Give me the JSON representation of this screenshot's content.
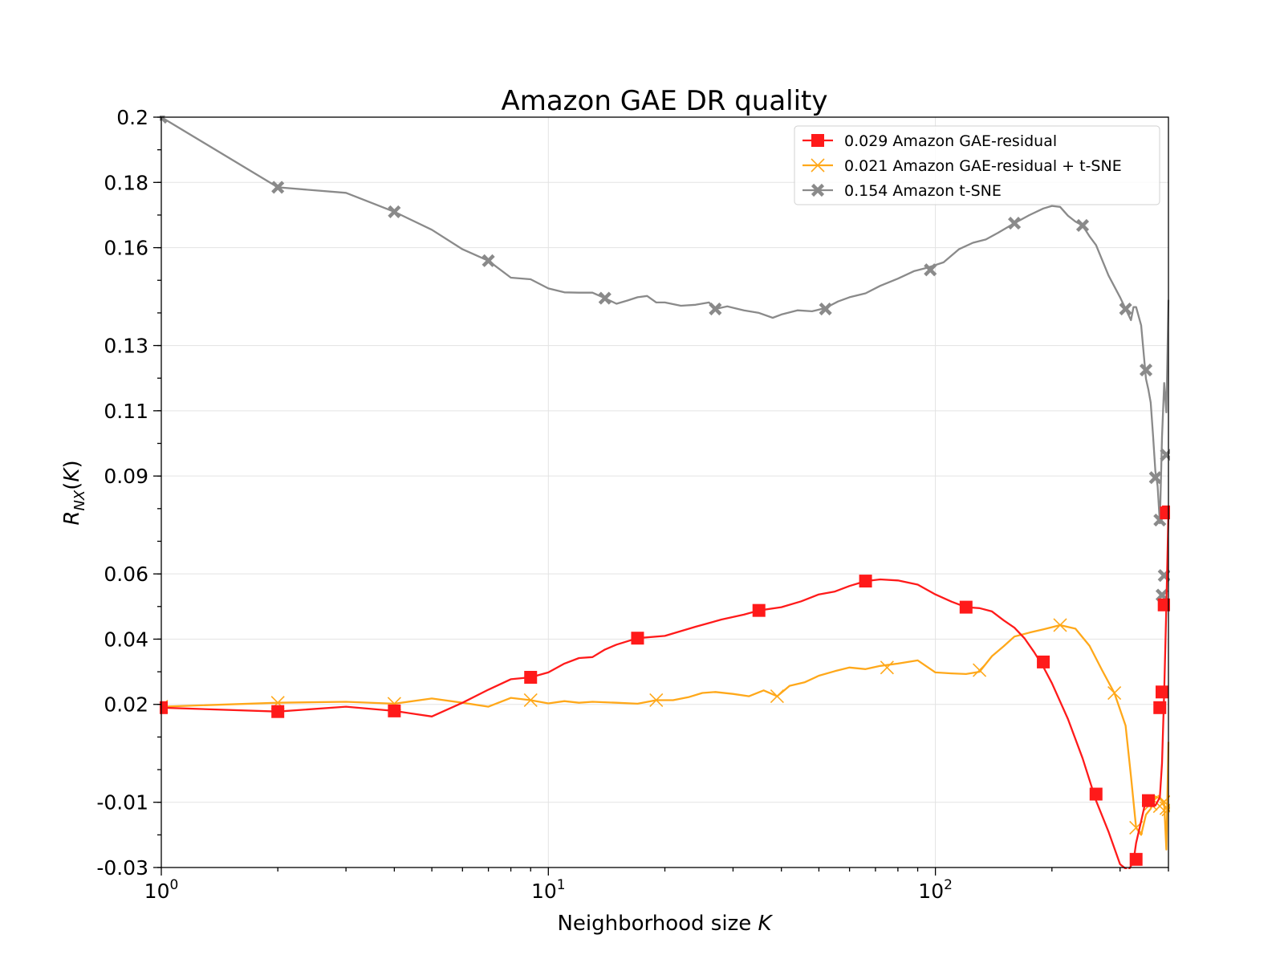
{
  "chart_data": {
    "type": "line",
    "title": "Amazon GAE DR quality",
    "xlabel": "Neighborhood size K",
    "ylabel": "R_NX(K)",
    "xscale": "log",
    "xlim": [
      1,
      400
    ],
    "ylim": [
      -0.03,
      0.2
    ],
    "grid": true,
    "legend_position": "top-right",
    "x_ticks": [
      {
        "value": 1,
        "base": "10",
        "exp": "0"
      },
      {
        "value": 10,
        "base": "10",
        "exp": "1"
      },
      {
        "value": 100,
        "base": "10",
        "exp": "2"
      }
    ],
    "y_ticks": [
      {
        "value": -0.03,
        "label": "-0.03"
      },
      {
        "value": -0.01,
        "label": "-0.01"
      },
      {
        "value": 0.02,
        "label": "0.02"
      },
      {
        "value": 0.04,
        "label": "0.04"
      },
      {
        "value": 0.06,
        "label": "0.06"
      },
      {
        "value": 0.09,
        "label": "0.09"
      },
      {
        "value": 0.11,
        "label": "0.11"
      },
      {
        "value": 0.13,
        "label": "0.13"
      },
      {
        "value": 0.16,
        "label": "0.16"
      },
      {
        "value": 0.18,
        "label": "0.18"
      },
      {
        "value": 0.2,
        "label": "0.2"
      }
    ],
    "series": [
      {
        "name": "0.029 Amazon GAE-residual",
        "color": "#ff1a1a",
        "marker": "square",
        "x": [
          1,
          2,
          3,
          4,
          5,
          6,
          7,
          8,
          9,
          10,
          11,
          12,
          13,
          14,
          15,
          17,
          20,
          24,
          28,
          32,
          35,
          40,
          45,
          50,
          55,
          60,
          66,
          72,
          80,
          90,
          100,
          110,
          120,
          130,
          140,
          150,
          160,
          170,
          180,
          190,
          200,
          220,
          240,
          260,
          280,
          300,
          315,
          325,
          330,
          340,
          350,
          360,
          370,
          380,
          385,
          390,
          395,
          400
        ],
        "y": [
          0.019,
          0.0178,
          0.0193,
          0.018,
          0.0163,
          0.0205,
          0.0245,
          0.0277,
          0.0283,
          0.0298,
          0.0325,
          0.0342,
          0.0345,
          0.0368,
          0.0383,
          0.0403,
          0.041,
          0.0438,
          0.046,
          0.0475,
          0.0488,
          0.0498,
          0.0516,
          0.0537,
          0.0546,
          0.0563,
          0.0578,
          0.0583,
          0.058,
          0.0567,
          0.0537,
          0.0515,
          0.0498,
          0.0495,
          0.0485,
          0.0458,
          0.0435,
          0.0402,
          0.036,
          0.0315,
          0.0265,
          0.0155,
          0.0035,
          -0.0095,
          -0.019,
          -0.029,
          -0.031,
          -0.028,
          -0.0225,
          -0.0158,
          -0.0092,
          -0.0095,
          -0.011,
          -0.0085,
          0.002,
          0.0238,
          0.05,
          0.079
        ],
        "markers_x": [
          1,
          2,
          4,
          9,
          17,
          35,
          66,
          120,
          190,
          260,
          330,
          355,
          380,
          385,
          390,
          395,
          400
        ],
        "markers_y": [
          0.019,
          0.0178,
          0.018,
          0.0283,
          0.0403,
          0.0488,
          0.0578,
          0.0498,
          0.033,
          -0.0075,
          -0.0275,
          -0.0095,
          0.019,
          0.0238,
          0.0505,
          0.0787,
          0.079
        ]
      },
      {
        "name": "0.021 Amazon GAE-residual + t-SNE",
        "color": "#ffa81a",
        "marker": "x",
        "x": [
          1,
          2,
          3,
          4,
          5,
          6,
          7,
          8,
          9,
          10,
          11,
          12,
          13,
          15,
          17,
          19,
          21,
          23,
          25,
          27,
          30,
          33,
          36,
          39,
          42,
          46,
          50,
          55,
          60,
          66,
          72,
          80,
          90,
          100,
          110,
          120,
          130,
          140,
          150,
          160,
          175,
          190,
          210,
          230,
          250,
          270,
          290,
          310,
          320,
          330,
          340,
          350,
          360,
          370,
          380,
          390,
          395,
          400
        ],
        "y": [
          0.0193,
          0.0205,
          0.0208,
          0.0202,
          0.0218,
          0.0205,
          0.0193,
          0.022,
          0.0213,
          0.0203,
          0.021,
          0.0205,
          0.0208,
          0.0205,
          0.0202,
          0.0213,
          0.0213,
          0.0222,
          0.0235,
          0.0238,
          0.0232,
          0.0225,
          0.0243,
          0.0225,
          0.0257,
          0.0268,
          0.0288,
          0.0302,
          0.0313,
          0.0308,
          0.0318,
          0.0325,
          0.0335,
          0.0298,
          0.0295,
          0.0293,
          0.03,
          0.0348,
          0.0378,
          0.0408,
          0.042,
          0.043,
          0.0443,
          0.0432,
          0.038,
          0.0303,
          0.0235,
          0.0135,
          -0.002,
          -0.0178,
          -0.02,
          -0.0138,
          -0.012,
          -0.0082,
          -0.0088,
          -0.0105,
          -0.0245,
          0.0085
        ],
        "markers_x": [
          1,
          2,
          4,
          9,
          19,
          39,
          75,
          130,
          210,
          290,
          330,
          360,
          380,
          390,
          395,
          400
        ],
        "markers_y": [
          0.0193,
          0.0205,
          0.0202,
          0.0213,
          0.0213,
          0.0225,
          0.0313,
          0.0305,
          0.0443,
          0.0235,
          -0.0178,
          -0.0105,
          -0.0112,
          -0.0098,
          -0.0118,
          -0.0122
        ]
      },
      {
        "name": "0.154 Amazon t-SNE",
        "color": "#8a8a8a",
        "marker": "X",
        "x": [
          1,
          2,
          3,
          4,
          5,
          6,
          7,
          8,
          9,
          10,
          11,
          12,
          13,
          14,
          15,
          16,
          17,
          18,
          19,
          20,
          22,
          24,
          26,
          27,
          29,
          32,
          35,
          38,
          40,
          44,
          48,
          52,
          56,
          60,
          66,
          72,
          80,
          88,
          95,
          105,
          115,
          125,
          135,
          145,
          160,
          175,
          190,
          200,
          210,
          220,
          230,
          240,
          250,
          260,
          280,
          300,
          320,
          325,
          330,
          340,
          345,
          350,
          355,
          360,
          365,
          370,
          375,
          380,
          385,
          390,
          395,
          400
        ],
        "y": [
          0.2,
          0.1785,
          0.1768,
          0.171,
          0.1655,
          0.1595,
          0.156,
          0.1508,
          0.1503,
          0.1475,
          0.1463,
          0.1462,
          0.1462,
          0.1445,
          0.1428,
          0.1438,
          0.1448,
          0.1452,
          0.1432,
          0.1432,
          0.1422,
          0.1425,
          0.1432,
          0.1412,
          0.142,
          0.1408,
          0.14,
          0.1385,
          0.1395,
          0.1408,
          0.1405,
          0.1415,
          0.1435,
          0.1448,
          0.146,
          0.1483,
          0.1505,
          0.1528,
          0.1538,
          0.1555,
          0.1595,
          0.1615,
          0.1625,
          0.1645,
          0.1675,
          0.17,
          0.172,
          0.1728,
          0.1725,
          0.1698,
          0.168,
          0.1668,
          0.1635,
          0.1608,
          0.1515,
          0.1448,
          0.1378,
          0.1418,
          0.1418,
          0.1362,
          0.128,
          0.1198,
          0.1165,
          0.1125,
          0.1025,
          0.0915,
          0.087,
          0.0755,
          0.102,
          0.1185,
          0.1095,
          0.144
        ],
        "markers_x": [
          1,
          2,
          4,
          7,
          14,
          27,
          52,
          97,
          160,
          240,
          310,
          350,
          370,
          380,
          385,
          390,
          395
        ],
        "markers_y": [
          0.2,
          0.1785,
          0.171,
          0.156,
          0.1445,
          0.1412,
          0.1412,
          0.1532,
          0.1675,
          0.1668,
          0.1412,
          0.1225,
          0.0895,
          0.0765,
          0.0535,
          0.0595,
          0.0965
        ]
      }
    ]
  }
}
